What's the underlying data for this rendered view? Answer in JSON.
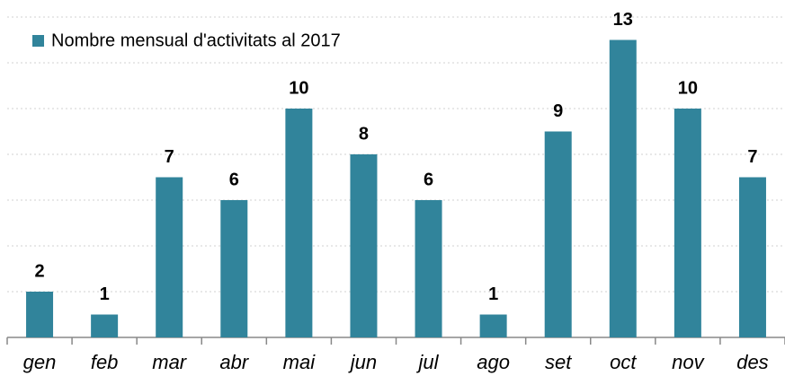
{
  "chart_data": {
    "type": "bar",
    "categories": [
      "gen",
      "feb",
      "mar",
      "abr",
      "mai",
      "jun",
      "jul",
      "ago",
      "set",
      "oct",
      "nov",
      "des"
    ],
    "series": [
      {
        "name": "Nombre mensual d'activitats al 2017",
        "color": "#31849b",
        "values": [
          2,
          1,
          7,
          6,
          10,
          8,
          6,
          1,
          9,
          13,
          10,
          7
        ]
      }
    ],
    "ylim": [
      0,
      14
    ],
    "yticks": [
      0,
      2,
      4,
      6,
      8,
      10,
      12,
      14
    ],
    "grid": true,
    "legend": "upper left",
    "data_labels": true
  }
}
